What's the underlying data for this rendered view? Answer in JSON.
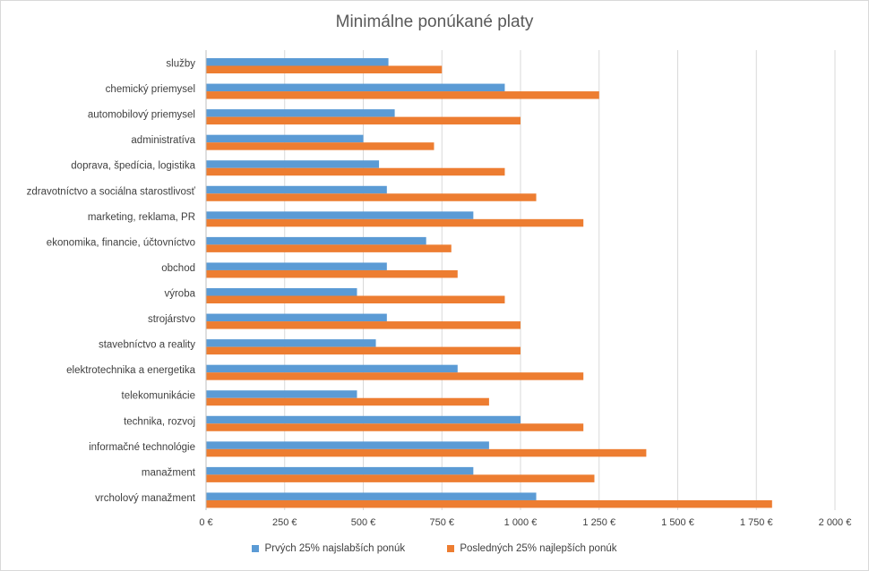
{
  "chart_data": {
    "type": "bar",
    "orientation": "horizontal",
    "title": "Minimálne ponúkané platy",
    "categories": [
      "služby",
      "chemický priemysel",
      "automobilový priemysel",
      "administratíva",
      "doprava, špedícia, logistika",
      "zdravotníctvo a sociálna starostlivosť",
      "marketing, reklama, PR",
      "ekonomika, financie, účtovníctvo",
      "obchod",
      "výroba",
      "strojárstvo",
      "stavebníctvo a reality",
      "elektrotechnika a energetika",
      "telekomunikácie",
      "technika, rozvoj",
      "informačné technológie",
      "manažment",
      "vrcholový manažment"
    ],
    "series": [
      {
        "name": "Prvých 25% najslabších ponúk",
        "color": "#5b9bd5",
        "values": [
          580,
          950,
          600,
          500,
          550,
          575,
          850,
          700,
          575,
          480,
          575,
          540,
          800,
          480,
          1000,
          900,
          850,
          1050
        ]
      },
      {
        "name": "Posledných 25% najlepších ponúk",
        "color": "#ed7d31",
        "values": [
          750,
          1250,
          1000,
          725,
          950,
          1050,
          1200,
          780,
          800,
          950,
          1000,
          1000,
          1200,
          900,
          1200,
          1400,
          1235,
          1800
        ]
      }
    ],
    "xlim": [
      0,
      2000
    ],
    "xticks": [
      0,
      250,
      500,
      750,
      1000,
      1250,
      1500,
      1750,
      2000
    ],
    "xtick_labels": [
      "0 €",
      "250 €",
      "500 €",
      "750 €",
      "1 000 €",
      "1 250 €",
      "1 500 €",
      "1 750 €",
      "2 000 €"
    ],
    "grid": "vertical",
    "legend_position": "bottom"
  }
}
